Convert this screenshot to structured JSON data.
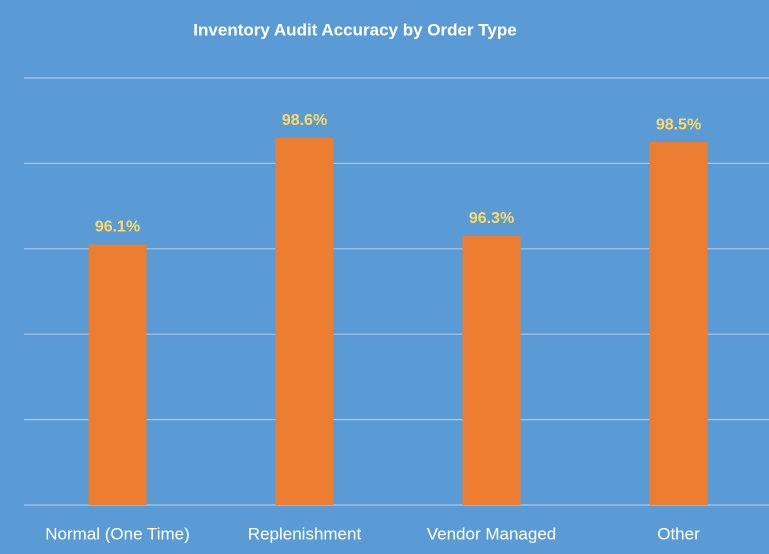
{
  "chart_data": {
    "type": "bar",
    "title": "Inventory Audit Accuracy by Order Type",
    "categories": [
      "Normal (One Time)",
      "Replenishment",
      "Vendor Managed",
      "Other"
    ],
    "values": [
      96.1,
      98.6,
      96.3,
      98.5
    ],
    "value_labels": [
      "96.1%",
      "98.6%",
      "96.3%",
      "98.5%"
    ],
    "color": "#ed7d31",
    "ylim": [
      90,
      100
    ],
    "yticks": [
      90,
      92,
      94,
      96,
      98,
      100
    ],
    "grid": true
  }
}
